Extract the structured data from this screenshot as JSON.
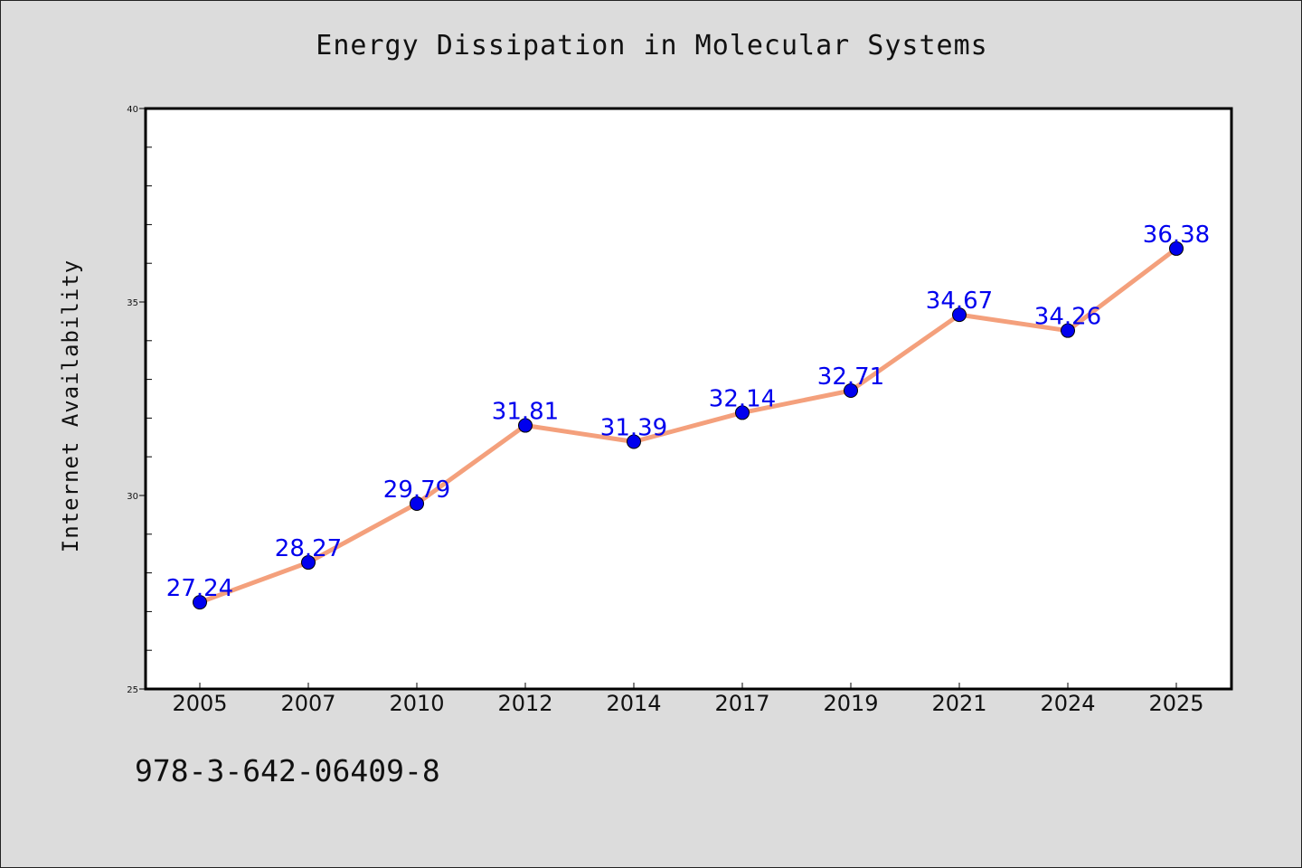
{
  "chart_data": {
    "type": "line",
    "title": "Energy Dissipation in Molecular Systems",
    "xlabel": "",
    "ylabel": "Internet Availability",
    "categories": [
      "2005",
      "2007",
      "2010",
      "2012",
      "2014",
      "2017",
      "2019",
      "2021",
      "2024",
      "2025"
    ],
    "series": [
      {
        "values": [
          27.24,
          28.27,
          29.79,
          31.81,
          31.39,
          32.14,
          32.71,
          34.67,
          34.26,
          36.38
        ],
        "data_labels": [
          "27.24",
          "28.27",
          "29.79",
          "31.81",
          "31.39",
          "32.14",
          "32.71",
          "34.67",
          "34.26",
          "36.38"
        ]
      }
    ],
    "ylim": [
      25,
      40
    ],
    "yticks": [
      "25",
      "30",
      "35",
      "40"
    ],
    "grid": false,
    "legend": "none",
    "colors": {
      "line": "#f4a07c",
      "marker": "#0000ee",
      "data_label": "#0000ee",
      "plot_background": "#ffffff",
      "figure_background": "#dcdcdc"
    }
  },
  "footer": {
    "code": "978-3-642-06409-8"
  }
}
